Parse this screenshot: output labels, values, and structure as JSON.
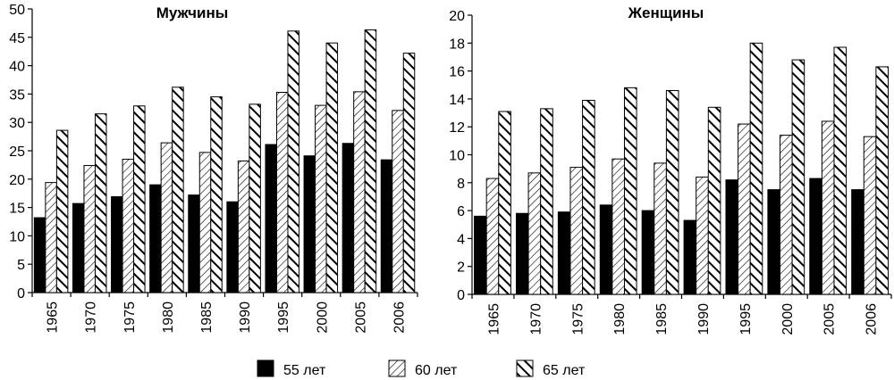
{
  "legend": [
    {
      "label": "55 лет",
      "pattern": "solid"
    },
    {
      "label": "60 лет",
      "pattern": "thin-diagonal"
    },
    {
      "label": "65 лет",
      "pattern": "thick-diagonal"
    }
  ],
  "colors": {
    "bar": "#000000",
    "background": "#ffffff",
    "axis": "#000000"
  },
  "chart_data": [
    {
      "type": "bar",
      "title": "Мужчины",
      "xlabel": "",
      "ylabel": "",
      "categories": [
        "1965",
        "1970",
        "1975",
        "1980",
        "1985",
        "1990",
        "1995",
        "2000",
        "2005",
        "2006"
      ],
      "ylim": [
        0,
        50
      ],
      "yticks": [
        "0",
        "5",
        "10",
        "15",
        "20",
        "25",
        "30",
        "35",
        "40",
        "45",
        "50"
      ],
      "grid": false,
      "legend_position": "bottom",
      "series": [
        {
          "name": "55 лет",
          "values": [
            13.2,
            15.7,
            16.9,
            19.0,
            17.2,
            16.0,
            26.1,
            24.1,
            26.3,
            23.4
          ]
        },
        {
          "name": "60 лет",
          "values": [
            19.4,
            22.4,
            23.5,
            26.4,
            24.7,
            23.2,
            35.3,
            33.0,
            35.4,
            32.1
          ]
        },
        {
          "name": "65 лет",
          "values": [
            28.6,
            31.5,
            32.9,
            36.2,
            34.5,
            33.2,
            46.1,
            44.0,
            46.3,
            42.2
          ]
        }
      ]
    },
    {
      "type": "bar",
      "title": "Женщины",
      "xlabel": "",
      "ylabel": "",
      "categories": [
        "1965",
        "1970",
        "1975",
        "1980",
        "1985",
        "1990",
        "1995",
        "2000",
        "2005",
        "2006"
      ],
      "ylim": [
        0,
        20
      ],
      "yticks": [
        "0",
        "2",
        "4",
        "6",
        "8",
        "10",
        "12",
        "14",
        "16",
        "18",
        "20"
      ],
      "grid": false,
      "legend_position": "bottom",
      "series": [
        {
          "name": "55 лет",
          "values": [
            5.6,
            5.8,
            5.9,
            6.4,
            6.0,
            5.3,
            8.2,
            7.5,
            8.3,
            7.5
          ]
        },
        {
          "name": "60 лет",
          "values": [
            8.3,
            8.7,
            9.1,
            9.7,
            9.4,
            8.4,
            12.2,
            11.4,
            12.4,
            11.3
          ]
        },
        {
          "name": "65 лет",
          "values": [
            13.1,
            13.3,
            13.9,
            14.8,
            14.6,
            13.4,
            18.0,
            16.8,
            17.7,
            16.3
          ]
        }
      ]
    }
  ]
}
